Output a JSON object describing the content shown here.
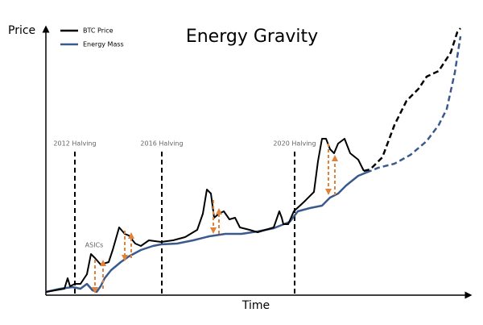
{
  "title": "Energy Gravity",
  "axes": {
    "y_label": "Price",
    "x_label": "Time"
  },
  "legend": [
    "BTC Price",
    "Energy Mass"
  ],
  "annotations": {
    "halvings": [
      "2012 Halving",
      "2016 Halving",
      "2020 Halving"
    ],
    "asics": "ASICs"
  }
}
